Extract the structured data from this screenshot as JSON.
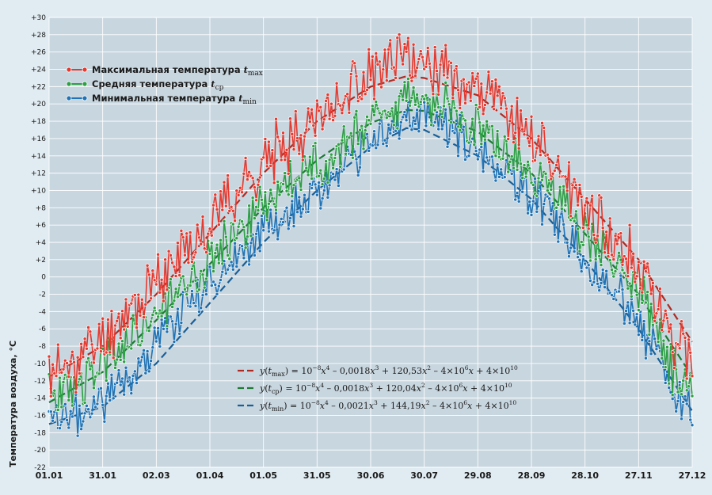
{
  "chart_data": {
    "type": "line",
    "x_range_days": [
      0,
      360
    ],
    "ylim": [
      -22,
      30
    ],
    "y_tick_labels": [
      "-22",
      "-20",
      "-18",
      "-16",
      "-14",
      "-12",
      "-10",
      "-8",
      "-6",
      "-4",
      "-2",
      "0",
      "+2",
      "+4",
      "+6",
      "+8",
      "+10",
      "+12",
      "+14",
      "+16",
      "+18",
      "+20",
      "+22",
      "+24",
      "+26",
      "+28",
      "+30"
    ],
    "y_tick_values": [
      -22,
      -20,
      -18,
      -16,
      -14,
      -12,
      -10,
      -8,
      -6,
      -4,
      -2,
      0,
      2,
      4,
      6,
      8,
      10,
      12,
      14,
      16,
      18,
      20,
      22,
      24,
      26,
      28,
      30
    ],
    "x_tick_labels": [
      "01.01",
      "31.01",
      "02.03",
      "01.04",
      "01.05",
      "31.05",
      "30.06",
      "30.07",
      "29.08",
      "28.09",
      "28.10",
      "27.11",
      "27.12"
    ],
    "ylabel": "Температура воздуха, °С",
    "grid": true,
    "legend_position": "top-left",
    "colors": {
      "max": "#e6392f",
      "avg": "#2ca043",
      "min": "#1f73b6",
      "fit_max": "#b02a22",
      "fit_avg": "#1d7a33",
      "fit_min": "#1a5f96"
    },
    "series": [
      {
        "name_prefix": "Максимальная температура",
        "name_symbol": "t",
        "name_sub": "max",
        "color": "#e6392f",
        "anchors": [
          [
            0,
            -11
          ],
          [
            10,
            -10.5
          ],
          [
            20,
            -9
          ],
          [
            30,
            -7
          ],
          [
            40,
            -5
          ],
          [
            50,
            -3
          ],
          [
            60,
            -0.5
          ],
          [
            70,
            1.5
          ],
          [
            80,
            4
          ],
          [
            90,
            6.5
          ],
          [
            100,
            9
          ],
          [
            110,
            11
          ],
          [
            120,
            13
          ],
          [
            130,
            15
          ],
          [
            140,
            17
          ],
          [
            150,
            18.5
          ],
          [
            160,
            20
          ],
          [
            170,
            22
          ],
          [
            180,
            23.5
          ],
          [
            190,
            24
          ],
          [
            200,
            25
          ],
          [
            210,
            25
          ],
          [
            220,
            24
          ],
          [
            230,
            23
          ],
          [
            240,
            22
          ],
          [
            250,
            20
          ],
          [
            260,
            18
          ],
          [
            270,
            16
          ],
          [
            280,
            14
          ],
          [
            290,
            11
          ],
          [
            300,
            8
          ],
          [
            310,
            6
          ],
          [
            320,
            4
          ],
          [
            330,
            1
          ],
          [
            340,
            -3
          ],
          [
            350,
            -8
          ],
          [
            360,
            -9
          ]
        ],
        "amplitude": 2.8,
        "seed": 11
      },
      {
        "name_prefix": "Средняя температура",
        "name_symbol": "t",
        "name_sub": "ср",
        "color": "#2ca043",
        "anchors": [
          [
            0,
            -14
          ],
          [
            10,
            -13.5
          ],
          [
            20,
            -12
          ],
          [
            30,
            -10
          ],
          [
            40,
            -8.5
          ],
          [
            50,
            -6.5
          ],
          [
            60,
            -4
          ],
          [
            70,
            -2
          ],
          [
            80,
            0.5
          ],
          [
            90,
            2.5
          ],
          [
            100,
            4
          ],
          [
            110,
            6
          ],
          [
            120,
            8
          ],
          [
            130,
            10
          ],
          [
            140,
            12
          ],
          [
            150,
            13
          ],
          [
            160,
            14
          ],
          [
            170,
            16.5
          ],
          [
            180,
            18.5
          ],
          [
            190,
            19.5
          ],
          [
            200,
            20.5
          ],
          [
            210,
            21
          ],
          [
            220,
            20
          ],
          [
            230,
            19
          ],
          [
            240,
            17.5
          ],
          [
            250,
            16
          ],
          [
            260,
            14
          ],
          [
            270,
            12
          ],
          [
            280,
            10
          ],
          [
            290,
            8
          ],
          [
            300,
            5
          ],
          [
            310,
            3
          ],
          [
            320,
            1
          ],
          [
            330,
            -2
          ],
          [
            340,
            -6
          ],
          [
            350,
            -11
          ],
          [
            360,
            -12
          ]
        ],
        "amplitude": 2.4,
        "seed": 23
      },
      {
        "name_prefix": "Минимальная температура",
        "name_symbol": "t",
        "name_sub": "min",
        "color": "#1f73b6",
        "anchors": [
          [
            0,
            -17
          ],
          [
            10,
            -17
          ],
          [
            20,
            -15.5
          ],
          [
            30,
            -14
          ],
          [
            40,
            -12.5
          ],
          [
            50,
            -10
          ],
          [
            60,
            -7.5
          ],
          [
            70,
            -5
          ],
          [
            80,
            -2.5
          ],
          [
            90,
            -0.5
          ],
          [
            100,
            1.5
          ],
          [
            110,
            3.5
          ],
          [
            120,
            5.5
          ],
          [
            130,
            7
          ],
          [
            140,
            9
          ],
          [
            150,
            10
          ],
          [
            160,
            11.5
          ],
          [
            170,
            13.5
          ],
          [
            180,
            15.5
          ],
          [
            190,
            17
          ],
          [
            200,
            18
          ],
          [
            210,
            19
          ],
          [
            220,
            18
          ],
          [
            230,
            16.5
          ],
          [
            240,
            15
          ],
          [
            250,
            13
          ],
          [
            260,
            11.5
          ],
          [
            270,
            9.5
          ],
          [
            280,
            7.5
          ],
          [
            290,
            5
          ],
          [
            300,
            2
          ],
          [
            310,
            0
          ],
          [
            320,
            -2
          ],
          [
            330,
            -5
          ],
          [
            340,
            -9
          ],
          [
            350,
            -14
          ],
          [
            360,
            -15
          ]
        ],
        "amplitude": 2.2,
        "seed": 37
      }
    ],
    "fits": [
      {
        "series": "max",
        "color": "#b02a22",
        "points": [
          [
            0,
            -11.5
          ],
          [
            30,
            -8
          ],
          [
            60,
            -2
          ],
          [
            90,
            5
          ],
          [
            120,
            12
          ],
          [
            150,
            18
          ],
          [
            180,
            22
          ],
          [
            200,
            23.2
          ],
          [
            210,
            23
          ],
          [
            240,
            21
          ],
          [
            270,
            16
          ],
          [
            300,
            9
          ],
          [
            330,
            2
          ],
          [
            360,
            -7.5
          ]
        ],
        "formula": {
          "lhs_sub": "max",
          "c3": "0,0018",
          "c2": "120,53"
        }
      },
      {
        "series": "avg",
        "color": "#1d7a33",
        "points": [
          [
            0,
            -14.5
          ],
          [
            30,
            -11
          ],
          [
            60,
            -5
          ],
          [
            90,
            1.5
          ],
          [
            120,
            8
          ],
          [
            150,
            13.5
          ],
          [
            180,
            17.8
          ],
          [
            200,
            19.3
          ],
          [
            210,
            19.2
          ],
          [
            240,
            16.8
          ],
          [
            270,
            12
          ],
          [
            300,
            5
          ],
          [
            330,
            -2
          ],
          [
            360,
            -11.5
          ]
        ],
        "formula": {
          "lhs_sub": "ср",
          "c3": "0,0018",
          "c2": "120,04"
        }
      },
      {
        "series": "min",
        "color": "#1a5f96",
        "points": [
          [
            0,
            -17
          ],
          [
            30,
            -15
          ],
          [
            60,
            -10
          ],
          [
            90,
            -3
          ],
          [
            120,
            4
          ],
          [
            150,
            10
          ],
          [
            180,
            15
          ],
          [
            200,
            17.2
          ],
          [
            210,
            17
          ],
          [
            240,
            14
          ],
          [
            270,
            9
          ],
          [
            300,
            2
          ],
          [
            330,
            -6
          ],
          [
            360,
            -15.5
          ]
        ],
        "formula": {
          "lhs_sub": "min",
          "c3": "0,0021",
          "c2": "144,19"
        }
      }
    ],
    "formula_template": {
      "lhs": "y(t",
      "pow8": "−8",
      "pow6": "6",
      "pow10": "10",
      "ten": "10",
      "x": "x",
      "tail": "– 4×10",
      "plus": "+ 4×10"
    }
  }
}
